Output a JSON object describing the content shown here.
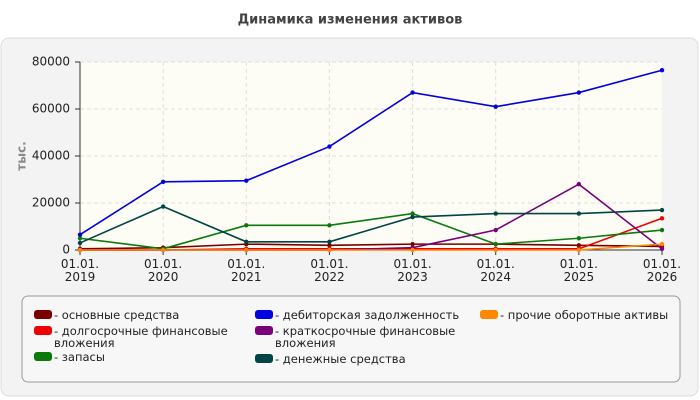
{
  "chart_data": {
    "type": "line",
    "title": "Динамика изменения активов",
    "y_label": "тыс.",
    "categories": [
      "01.01. 2019",
      "01.01. 2020",
      "01.01. 2021",
      "01.01. 2022",
      "01.01. 2023",
      "01.01. 2024",
      "01.01. 2025",
      "01.01. 2026"
    ],
    "ylim": [
      0,
      80000
    ],
    "yticks": [
      0,
      20000,
      40000,
      60000,
      80000
    ],
    "grid": true,
    "series": [
      {
        "name": "- основные средства",
        "color": "#7a0000",
        "values": [
          500,
          1000,
          2500,
          2000,
          2500,
          2500,
          2000,
          1500
        ]
      },
      {
        "name": "- долгосрочные финансовые вложения",
        "color": "#ee0000",
        "values": [
          0,
          0,
          500,
          500,
          500,
          500,
          500,
          13500
        ]
      },
      {
        "name": "- запасы",
        "color": "#0a7a0a",
        "values": [
          5000,
          500,
          10500,
          10500,
          15500,
          2500,
          5000,
          8500
        ]
      },
      {
        "name": "- дебиторская задолженность",
        "color": "#0000e0",
        "values": [
          6500,
          29000,
          29500,
          44000,
          67000,
          61000,
          67000,
          76500
        ]
      },
      {
        "name": "- краткосрочные финансовые вложения",
        "color": "#7a007a",
        "values": [
          0,
          0,
          0,
          0,
          1000,
          8500,
          28000,
          500
        ]
      },
      {
        "name": "- денежные средства",
        "color": "#004545",
        "values": [
          3000,
          18500,
          3500,
          3500,
          14000,
          15500,
          15500,
          17000
        ]
      },
      {
        "name": "- прочие оборотные активы",
        "color": "#ff8800",
        "values": [
          0,
          0,
          0,
          0,
          0,
          0,
          0,
          2500
        ]
      }
    ]
  }
}
